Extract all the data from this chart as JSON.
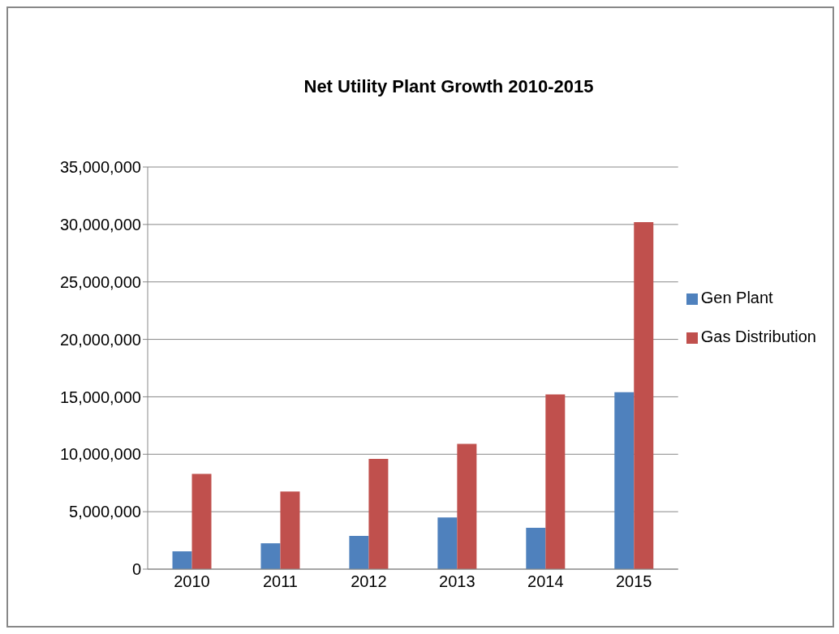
{
  "chart_data": {
    "type": "bar",
    "title": "Net Utility Plant Growth 2010-2015",
    "categories": [
      "2010",
      "2011",
      "2012",
      "2013",
      "2014",
      "2015"
    ],
    "series": [
      {
        "name": "Gen Plant",
        "color": "#4f81bd",
        "values": [
          1550000,
          2250000,
          2900000,
          4500000,
          3600000,
          15400000
        ]
      },
      {
        "name": "Gas Distribution",
        "color": "#c0504d",
        "values": [
          8300000,
          6750000,
          9600000,
          10900000,
          15200000,
          30200000
        ]
      }
    ],
    "ylim": [
      0,
      35000000
    ],
    "yticks": [
      {
        "value": 0,
        "label": "0"
      },
      {
        "value": 5000000,
        "label": "5,000,000"
      },
      {
        "value": 10000000,
        "label": "10,000,000"
      },
      {
        "value": 15000000,
        "label": "15,000,000"
      },
      {
        "value": 20000000,
        "label": "20,000,000"
      },
      {
        "value": 25000000,
        "label": "25,000,000"
      },
      {
        "value": 30000000,
        "label": "30,000,000"
      },
      {
        "value": 35000000,
        "label": "35,000,000"
      }
    ],
    "grid": "y",
    "legend": "right"
  }
}
